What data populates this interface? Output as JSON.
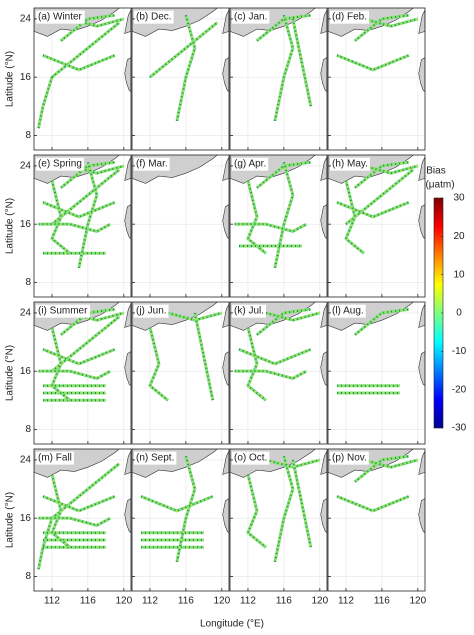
{
  "chart_data": {
    "type": "map-grid",
    "panels": [
      "(a) Winter",
      "(b) Dec.",
      "(c) Jan.",
      "(d) Feb.",
      "(e) Spring",
      "(f) Mar.",
      "(g) Apr.",
      "(h) May.",
      "(i) Summer",
      "(j) Jun.",
      "(k) Jul.",
      "(l) Aug.",
      "(m) Fall",
      "(n) Sept.",
      "(o) Oct.",
      "(p) Nov."
    ],
    "xlabel": "Longitude (°E)",
    "ylabel": "Latitude (°N)",
    "xlim": [
      110,
      120.8
    ],
    "xticks": [
      112,
      116,
      120
    ],
    "ylim": [
      6,
      25.5
    ],
    "yticks": [
      8,
      16,
      24
    ],
    "grid": true,
    "colorbar": {
      "title": "Bias",
      "unit": "(μatm)",
      "lim": [
        -30,
        30
      ],
      "ticks": [
        30,
        20,
        10,
        0,
        -10,
        -20,
        -30
      ],
      "colormap": "jet"
    }
  }
}
